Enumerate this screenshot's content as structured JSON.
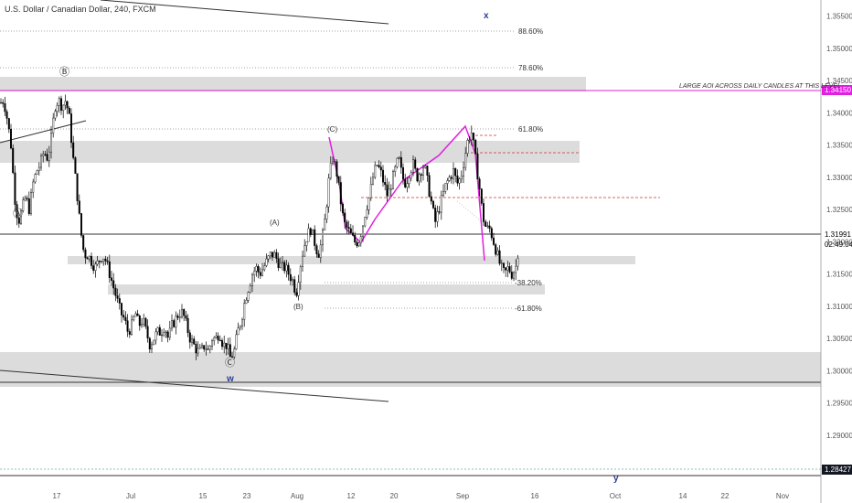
{
  "title": "U.S. Dollar / Canadian Dollar, 240, FXCM",
  "colors": {
    "magenta": "#e020e0",
    "zone": "#dcdcdc",
    "wave_label": "#2a3f8f",
    "current_price_bg": "#131722",
    "candle": "#000000"
  },
  "chart_data": {
    "type": "candlestick",
    "ylim": [
      1.2795,
      1.3575
    ],
    "y_ticks": [
      "1.35500",
      "1.35000",
      "1.34500",
      "1.34000",
      "1.33500",
      "1.33000",
      "1.32500",
      "1.32000",
      "1.31500",
      "1.31000",
      "1.30500",
      "1.30000",
      "1.29500",
      "1.29000",
      "1.28500"
    ],
    "x_ticks": [
      "17",
      "Jul",
      "15",
      "23",
      "Aug",
      "12",
      "20",
      "Sep",
      "16",
      "Oct",
      "14",
      "22",
      "Nov"
    ],
    "price_labels": {
      "last": "1.31991",
      "countdown": "02:49:04",
      "level_top": "1.34150",
      "level_bottom": "1.28427"
    },
    "fib_labels": [
      "88.60%",
      "78.60%",
      "61.80%",
      "-38.20%",
      "-61.80%"
    ],
    "annotation": "LARGE AOI ACROSS DAILY CANDLES AT THIS LEVEL",
    "wave_labels": [
      "Ⓐ",
      "Ⓑ",
      "Ⓒ",
      "(A)",
      "(B)",
      "(C)"
    ],
    "big_labels": [
      "x",
      "w",
      "y"
    ],
    "path": [
      [
        0,
        1.3415
      ],
      [
        4,
        1.342
      ],
      [
        8,
        1.339
      ],
      [
        12,
        1.335
      ],
      [
        16,
        1.327
      ],
      [
        20,
        1.323
      ],
      [
        24,
        1.325
      ],
      [
        28,
        1.327
      ],
      [
        32,
        1.325
      ],
      [
        36,
        1.329
      ],
      [
        40,
        1.331
      ],
      [
        44,
        1.332
      ],
      [
        48,
        1.334
      ],
      [
        52,
        1.333
      ],
      [
        56,
        1.336
      ],
      [
        60,
        1.341
      ],
      [
        64,
        1.342
      ],
      [
        68,
        1.341
      ],
      [
        72,
        1.342
      ],
      [
        76,
        1.339
      ],
      [
        80,
        1.333
      ],
      [
        84,
        1.328
      ],
      [
        88,
        1.322
      ],
      [
        92,
        1.318
      ],
      [
        96,
        1.318
      ],
      [
        100,
        1.317
      ],
      [
        104,
        1.316
      ],
      [
        108,
        1.317
      ],
      [
        112,
        1.318
      ],
      [
        116,
        1.317
      ],
      [
        120,
        1.315
      ],
      [
        124,
        1.313
      ],
      [
        128,
        1.311
      ],
      [
        132,
        1.309
      ],
      [
        136,
        1.308
      ],
      [
        140,
        1.306
      ],
      [
        144,
        1.307
      ],
      [
        148,
        1.309
      ],
      [
        152,
        1.307
      ],
      [
        156,
        1.308
      ],
      [
        160,
        1.306
      ],
      [
        164,
        1.304
      ],
      [
        168,
        1.305
      ],
      [
        172,
        1.306
      ],
      [
        176,
        1.306
      ],
      [
        180,
        1.307
      ],
      [
        184,
        1.305
      ],
      [
        188,
        1.307
      ],
      [
        192,
        1.308
      ],
      [
        196,
        1.309
      ],
      [
        200,
        1.309
      ],
      [
        204,
        1.307
      ],
      [
        208,
        1.305
      ],
      [
        212,
        1.304
      ],
      [
        216,
        1.303
      ],
      [
        220,
        1.303
      ],
      [
        224,
        1.304
      ],
      [
        228,
        1.303
      ],
      [
        232,
        1.305
      ],
      [
        236,
        1.305
      ],
      [
        240,
        1.306
      ],
      [
        244,
        1.304
      ],
      [
        248,
        1.304
      ],
      [
        252,
        1.302
      ],
      [
        256,
        1.303
      ],
      [
        260,
        1.306
      ],
      [
        264,
        1.308
      ],
      [
        268,
        1.311
      ],
      [
        272,
        1.313
      ],
      [
        276,
        1.315
      ],
      [
        280,
        1.316
      ],
      [
        284,
        1.315
      ],
      [
        288,
        1.316
      ],
      [
        292,
        1.317
      ],
      [
        296,
        1.318
      ],
      [
        300,
        1.318
      ],
      [
        304,
        1.317
      ],
      [
        308,
        1.316
      ],
      [
        312,
        1.316
      ],
      [
        316,
        1.315
      ],
      [
        320,
        1.314
      ],
      [
        324,
        1.312
      ],
      [
        328,
        1.316
      ],
      [
        332,
        1.319
      ],
      [
        336,
        1.321
      ],
      [
        340,
        1.322
      ],
      [
        344,
        1.32
      ],
      [
        348,
        1.318
      ],
      [
        352,
        1.32
      ],
      [
        356,
        1.324
      ],
      [
        360,
        1.33
      ],
      [
        364,
        1.333
      ],
      [
        368,
        1.331
      ],
      [
        372,
        1.327
      ],
      [
        376,
        1.323
      ],
      [
        380,
        1.322
      ],
      [
        384,
        1.321
      ],
      [
        388,
        1.32
      ],
      [
        392,
        1.32
      ],
      [
        396,
        1.322
      ],
      [
        400,
        1.325
      ],
      [
        404,
        1.327
      ],
      [
        408,
        1.33
      ],
      [
        412,
        1.332
      ],
      [
        416,
        1.331
      ],
      [
        420,
        1.329
      ],
      [
        424,
        1.327
      ],
      [
        428,
        1.329
      ],
      [
        432,
        1.331
      ],
      [
        436,
        1.333
      ],
      [
        440,
        1.33
      ],
      [
        444,
        1.329
      ],
      [
        448,
        1.331
      ],
      [
        452,
        1.332
      ],
      [
        456,
        1.33
      ],
      [
        460,
        1.331
      ],
      [
        464,
        1.332
      ],
      [
        468,
        1.329
      ],
      [
        472,
        1.326
      ],
      [
        476,
        1.323
      ],
      [
        480,
        1.325
      ],
      [
        484,
        1.327
      ],
      [
        488,
        1.329
      ],
      [
        492,
        1.33
      ],
      [
        496,
        1.331
      ],
      [
        500,
        1.329
      ],
      [
        504,
        1.33
      ],
      [
        508,
        1.333
      ],
      [
        512,
        1.336
      ],
      [
        516,
        1.337
      ],
      [
        520,
        1.333
      ],
      [
        524,
        1.329
      ],
      [
        528,
        1.324
      ],
      [
        532,
        1.322
      ],
      [
        536,
        1.322
      ],
      [
        540,
        1.32
      ],
      [
        544,
        1.318
      ],
      [
        548,
        1.316
      ],
      [
        552,
        1.315
      ],
      [
        556,
        1.316
      ],
      [
        560,
        1.315
      ],
      [
        564,
        1.316
      ],
      [
        568,
        1.3199
      ]
    ]
  }
}
